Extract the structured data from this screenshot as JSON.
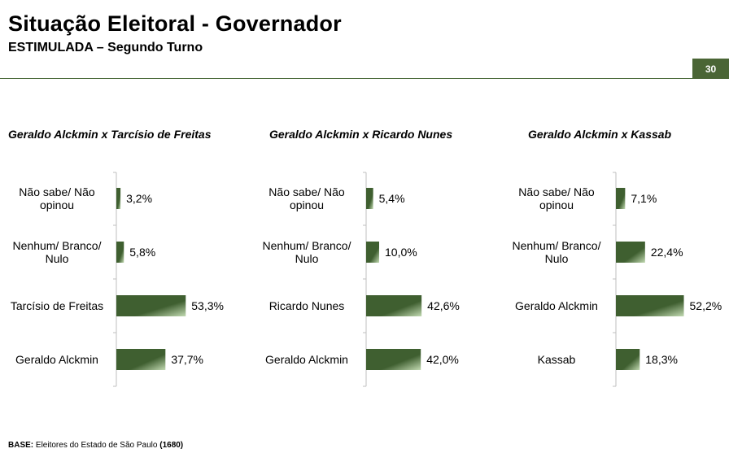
{
  "header": {
    "title": "Situação Eleitoral - Governador",
    "subtitle": "ESTIMULADA – Segundo Turno",
    "page_number": "30"
  },
  "footer": {
    "base_label": "BASE:",
    "base_text": "Eleitores do Estado de São Paulo",
    "base_count": "(1680)"
  },
  "colors": {
    "bar_dark": "#3f5f30",
    "bar_light": "#c2dab2",
    "accent": "#4a6535"
  },
  "chart_data": [
    {
      "type": "bar",
      "title": "Geraldo Alckmin x Tarcísio de Freitas",
      "categories": [
        [
          "Não sabe/ Não",
          "opinou"
        ],
        [
          "Nenhum/ Branco/",
          "Nulo"
        ],
        [
          "Tarcísio de Freitas"
        ],
        [
          "Geraldo Alckmin"
        ]
      ],
      "values": [
        3.2,
        5.8,
        53.3,
        37.7
      ],
      "labels": [
        "3,2%",
        "5,8%",
        "53,3%",
        "37,7%"
      ],
      "xlim": [
        0,
        100
      ]
    },
    {
      "type": "bar",
      "title": "Geraldo Alckmin x Ricardo Nunes",
      "categories": [
        [
          "Não sabe/ Não",
          "opinou"
        ],
        [
          "Nenhum/ Branco/",
          "Nulo"
        ],
        [
          "Ricardo Nunes"
        ],
        [
          "Geraldo Alckmin"
        ]
      ],
      "values": [
        5.4,
        10.0,
        42.6,
        42.0
      ],
      "labels": [
        "5,4%",
        "10,0%",
        "42,6%",
        "42,0%"
      ],
      "xlim": [
        0,
        100
      ]
    },
    {
      "type": "bar",
      "title": "Geraldo Alckmin x Kassab",
      "categories": [
        [
          "Não sabe/ Não",
          "opinou"
        ],
        [
          "Nenhum/ Branco/",
          "Nulo"
        ],
        [
          "Geraldo Alckmin"
        ],
        [
          "Kassab"
        ]
      ],
      "values": [
        7.1,
        22.4,
        52.2,
        18.3
      ],
      "labels": [
        "7,1%",
        "22,4%",
        "52,2%",
        "18,3%"
      ],
      "xlim": [
        0,
        100
      ]
    }
  ]
}
